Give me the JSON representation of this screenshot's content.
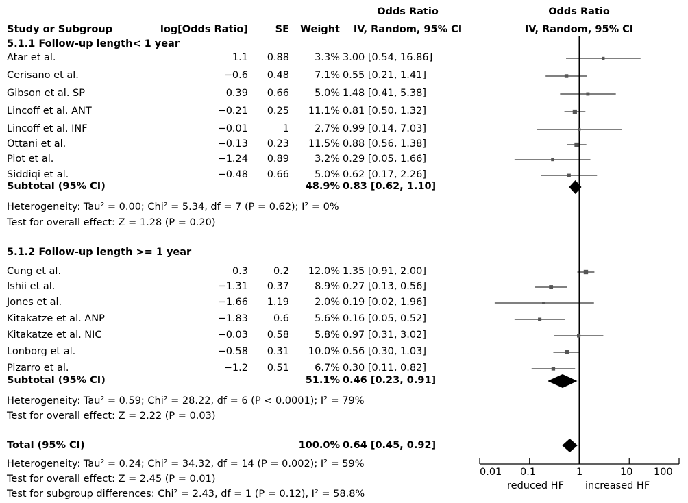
{
  "header": {
    "col_study": "Study or Subgroup",
    "col_log": "log[Odds Ratio]",
    "col_se": "SE",
    "col_weight": "Weight",
    "col_or_top": "Odds Ratio",
    "col_or_bottom": "IV, Random, 95% CI",
    "plot_top": "Odds Ratio",
    "plot_bottom": "IV, Random, 95% CI"
  },
  "groups": [
    {
      "title": "5.1.1 Follow-up length< 1 year",
      "studies": [
        {
          "name": "Atar et al.",
          "log": "1.1",
          "se": "0.88",
          "weight": "3.3%",
          "ci": "3.00 [0.54, 16.86]",
          "or": 3.0,
          "lo": 0.54,
          "hi": 16.86,
          "w": 3.3
        },
        {
          "name": "Cerisano et al.",
          "log": "−0.6",
          "se": "0.48",
          "weight": "7.1%",
          "ci": "0.55 [0.21, 1.41]",
          "or": 0.55,
          "lo": 0.21,
          "hi": 1.41,
          "w": 7.1
        },
        {
          "name": "Gibson et al. SP",
          "log": "0.39",
          "se": "0.66",
          "weight": "5.0%",
          "ci": "1.48 [0.41, 5.38]",
          "or": 1.48,
          "lo": 0.41,
          "hi": 5.38,
          "w": 5.0
        },
        {
          "name": "Lincoff et al. ANT",
          "log": "−0.21",
          "se": "0.25",
          "weight": "11.1%",
          "ci": "0.81 [0.50, 1.32]",
          "or": 0.81,
          "lo": 0.5,
          "hi": 1.32,
          "w": 11.1
        },
        {
          "name": "Lincoff et al. INF",
          "log": "−0.01",
          "se": "1",
          "weight": "2.7%",
          "ci": "0.99 [0.14, 7.03]",
          "or": 0.99,
          "lo": 0.14,
          "hi": 7.03,
          "w": 2.7
        },
        {
          "name": "Ottani et al.",
          "log": "−0.13",
          "se": "0.23",
          "weight": "11.5%",
          "ci": "0.88 [0.56, 1.38]",
          "or": 0.88,
          "lo": 0.56,
          "hi": 1.38,
          "w": 11.5
        },
        {
          "name": "Piot et al.",
          "log": "−1.24",
          "se": "0.89",
          "weight": "3.2%",
          "ci": "0.29 [0.05, 1.66]",
          "or": 0.29,
          "lo": 0.05,
          "hi": 1.66,
          "w": 3.2
        },
        {
          "name": "Siddiqi et al.",
          "log": "−0.48",
          "se": "0.66",
          "weight": "5.0%",
          "ci": "0.62 [0.17, 2.26]",
          "or": 0.62,
          "lo": 0.17,
          "hi": 2.26,
          "w": 5.0
        }
      ],
      "subtotal": {
        "label": "Subtotal (95% CI)",
        "weight": "48.9%",
        "ci": "0.83 [0.62, 1.10]",
        "or": 0.83,
        "lo": 0.62,
        "hi": 1.1
      },
      "heterogeneity": "Heterogeneity: Tau² = 0.00; Chi² = 5.34, df = 7 (P = 0.62); I² = 0%",
      "overall": "Test for overall effect: Z = 1.28 (P = 0.20)"
    },
    {
      "title": "5.1.2 Follow-up length >= 1 year",
      "studies": [
        {
          "name": "Cung et al.",
          "log": "0.3",
          "se": "0.2",
          "weight": "12.0%",
          "ci": "1.35 [0.91, 2.00]",
          "or": 1.35,
          "lo": 0.91,
          "hi": 2.0,
          "w": 12.0
        },
        {
          "name": "Ishii et al.",
          "log": "−1.31",
          "se": "0.37",
          "weight": "8.9%",
          "ci": "0.27 [0.13, 0.56]",
          "or": 0.27,
          "lo": 0.13,
          "hi": 0.56,
          "w": 8.9
        },
        {
          "name": "Jones et al.",
          "log": "−1.66",
          "se": "1.19",
          "weight": "2.0%",
          "ci": "0.19 [0.02, 1.96]",
          "or": 0.19,
          "lo": 0.02,
          "hi": 1.96,
          "w": 2.0
        },
        {
          "name": "Kitakatze et al. ANP",
          "log": "−1.83",
          "se": "0.6",
          "weight": "5.6%",
          "ci": "0.16 [0.05, 0.52]",
          "or": 0.16,
          "lo": 0.05,
          "hi": 0.52,
          "w": 5.6
        },
        {
          "name": "Kitakatze et al. NIC",
          "log": "−0.03",
          "se": "0.58",
          "weight": "5.8%",
          "ci": "0.97 [0.31, 3.02]",
          "or": 0.97,
          "lo": 0.31,
          "hi": 3.02,
          "w": 5.8
        },
        {
          "name": "Lonborg et al.",
          "log": "−0.58",
          "se": "0.31",
          "weight": "10.0%",
          "ci": "0.56 [0.30, 1.03]",
          "or": 0.56,
          "lo": 0.3,
          "hi": 1.03,
          "w": 10.0
        },
        {
          "name": "Pizarro et al.",
          "log": "−1.2",
          "se": "0.51",
          "weight": "6.7%",
          "ci": "0.30 [0.11, 0.82]",
          "or": 0.3,
          "lo": 0.11,
          "hi": 0.82,
          "w": 6.7
        }
      ],
      "subtotal": {
        "label": "Subtotal (95% CI)",
        "weight": "51.1%",
        "ci": "0.46 [0.23, 0.91]",
        "or": 0.46,
        "lo": 0.23,
        "hi": 0.91
      },
      "heterogeneity": "Heterogeneity: Tau² = 0.59; Chi² = 28.22, df = 6 (P < 0.0001); I² = 79%",
      "overall": "Test for overall effect: Z = 2.22 (P = 0.03)"
    }
  ],
  "total": {
    "label": "Total (95% CI)",
    "weight": "100.0%",
    "ci": "0.64 [0.45, 0.92]",
    "or": 0.64,
    "lo": 0.45,
    "hi": 0.92,
    "heterogeneity": "Heterogeneity: Tau² = 0.24; Chi² = 34.32, df = 14 (P = 0.002); I² = 59%",
    "overall": "Test for overall effect: Z = 2.45 (P = 0.01)",
    "subgroup": "Test for subgroup differences: Chi² = 2.43, df = 1 (P = 0.12), I² = 58.8%"
  },
  "axis": {
    "ticks": [
      "0.01",
      "0.1",
      "1",
      "10",
      "100"
    ],
    "left_label": "reduced HF",
    "right_label": "increased HF"
  },
  "chart_data": {
    "type": "scatter",
    "x_scale": "log",
    "xlim": [
      0.01,
      100
    ],
    "reference_line": 1,
    "x_ticks": [
      0.01,
      0.1,
      1,
      10,
      100
    ],
    "xlabel_left": "reduced HF",
    "xlabel_right": "increased HF",
    "grid": false
  }
}
